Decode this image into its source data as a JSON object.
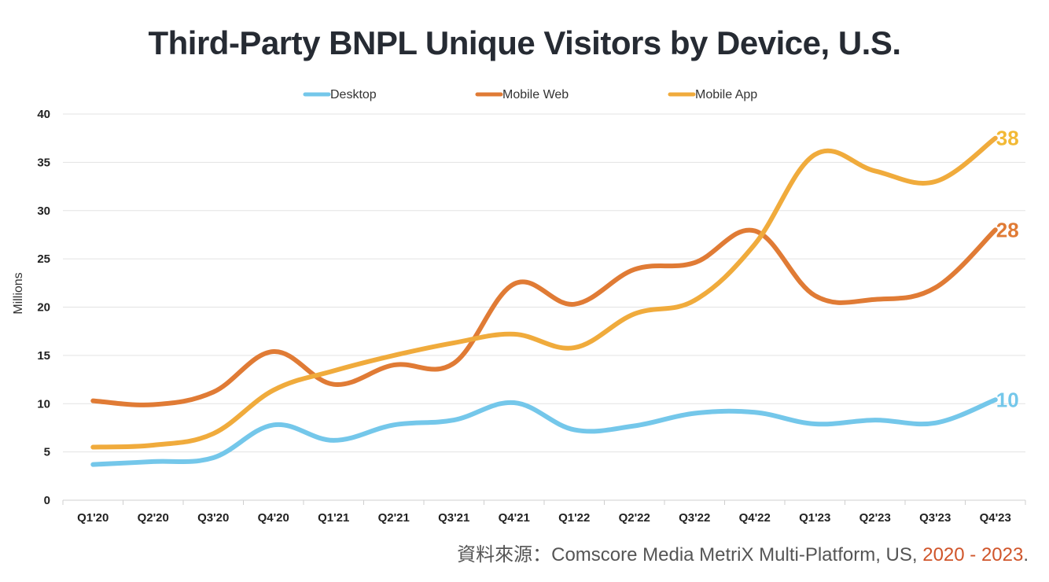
{
  "chart_data": {
    "type": "line",
    "title": "Third-Party BNPL Unique Visitors by Device, U.S.",
    "ylabel": "Millions",
    "xlabel": "",
    "ylim": [
      0,
      40
    ],
    "yticks": [
      0,
      5,
      10,
      15,
      20,
      25,
      30,
      35,
      40
    ],
    "grid": true,
    "legend_position": "top-center",
    "categories": [
      "Q1'20",
      "Q2'20",
      "Q3'20",
      "Q4'20",
      "Q1'21",
      "Q2'21",
      "Q3'21",
      "Q4'21",
      "Q1'22",
      "Q2'22",
      "Q3'22",
      "Q4'22",
      "Q1'23",
      "Q2'23",
      "Q3'23",
      "Q4'23"
    ],
    "series": [
      {
        "name": "Desktop",
        "color": "#74c7ea",
        "values": [
          3.7,
          4.0,
          4.4,
          7.8,
          6.2,
          7.8,
          8.3,
          10.1,
          7.3,
          7.7,
          9.0,
          9.1,
          7.9,
          8.3,
          8.0,
          10.4
        ],
        "end_label": "10"
      },
      {
        "name": "Mobile Web",
        "color": "#e07b35",
        "values": [
          10.3,
          9.9,
          11.2,
          15.4,
          12.0,
          14.0,
          14.2,
          22.4,
          20.3,
          23.9,
          24.6,
          27.9,
          21.2,
          20.8,
          22.0,
          28.0
        ],
        "end_label": "28"
      },
      {
        "name": "Mobile App",
        "color": "#f0ab3c",
        "values": [
          5.5,
          5.7,
          6.9,
          11.4,
          13.4,
          15.0,
          16.3,
          17.2,
          15.8,
          19.3,
          20.7,
          26.5,
          35.8,
          34.1,
          33.0,
          37.5
        ],
        "end_label": "38",
        "label_color": "#f2b935"
      }
    ]
  },
  "source": {
    "prefix": "資料來源：Comscore Media MetriX Multi-Platform, US, ",
    "highlight": "2020 -  2023",
    "suffix": ".",
    "highlight_color": "#d0552a",
    "text_color": "#555555"
  }
}
